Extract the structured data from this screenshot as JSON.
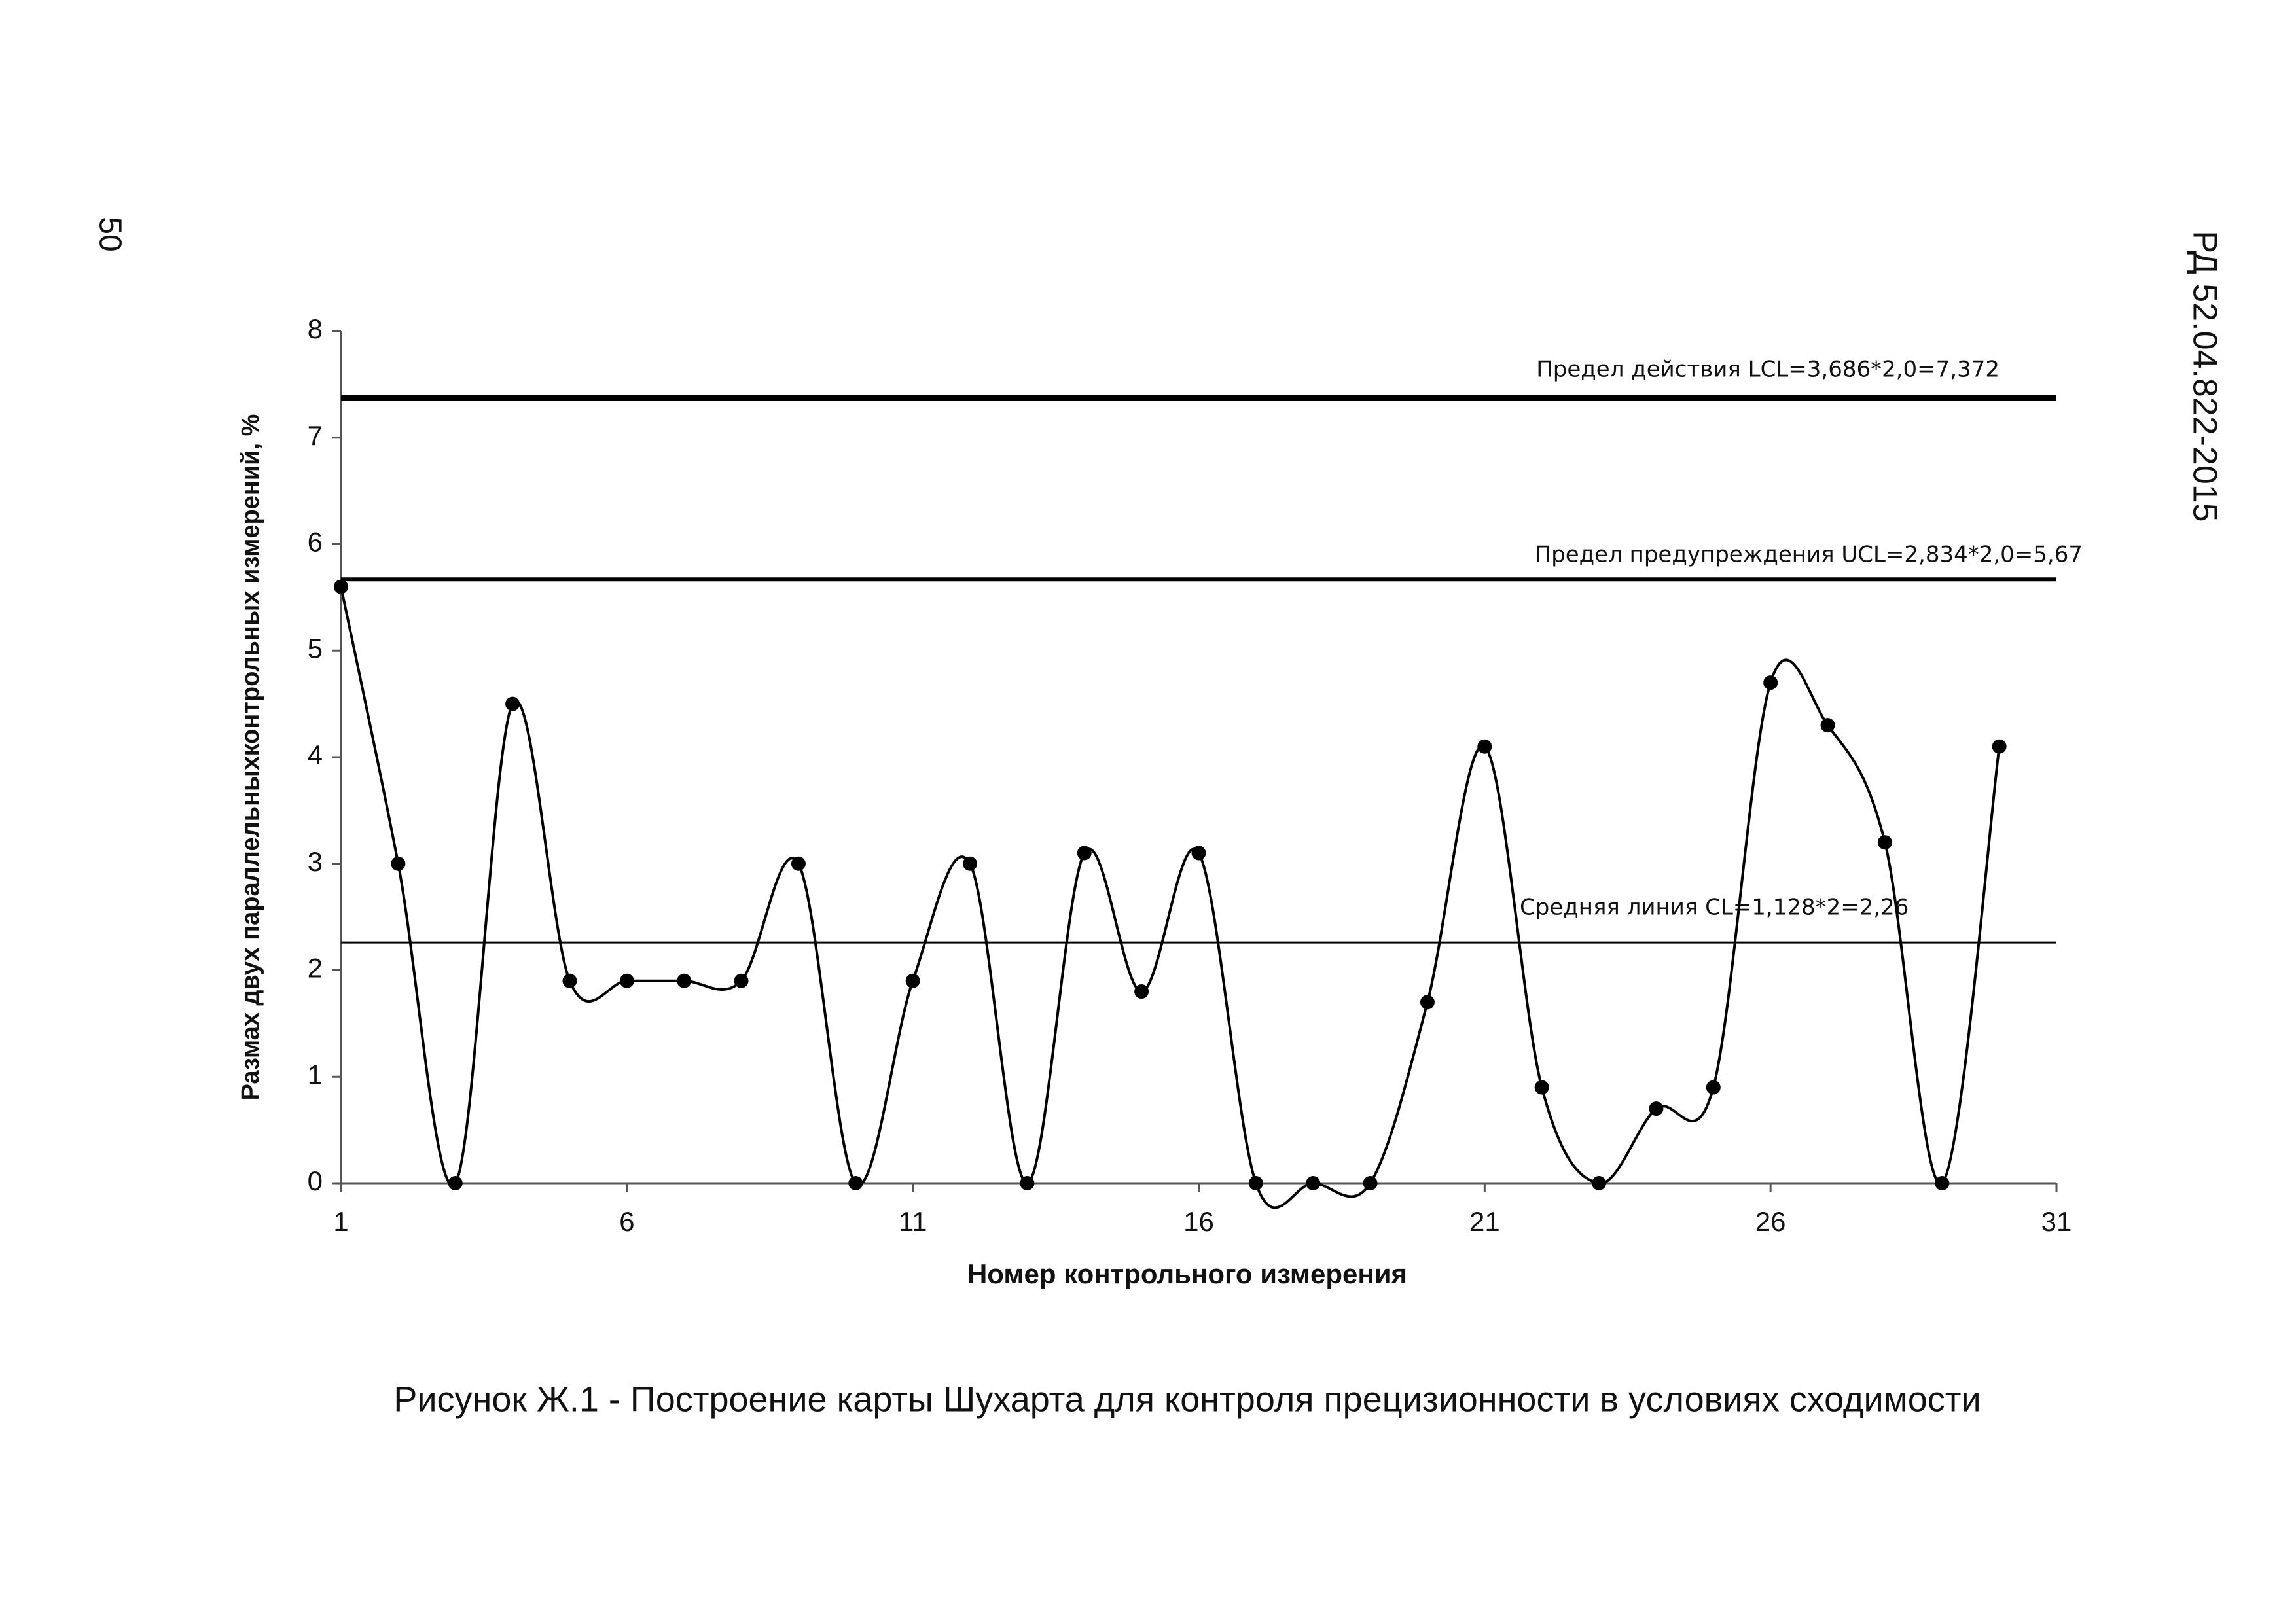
{
  "page": {
    "number": "50",
    "code": "РД 52.04.822-2015",
    "caption": "Рисунок Ж.1 - Построение карты Шухарта для контроля прецизионности в условиях сходимости"
  },
  "chart_data": {
    "type": "line",
    "x_label": "Номер контрольного измерения",
    "y_label": "Размах двух параллельныхконтрольных измерений, %",
    "x": [
      1,
      2,
      3,
      4,
      5,
      6,
      7,
      8,
      9,
      10,
      11,
      12,
      13,
      14,
      15,
      16,
      17,
      18,
      19,
      20,
      21,
      22,
      23,
      24,
      25,
      26,
      27,
      28,
      29,
      30
    ],
    "values": [
      5.6,
      3.0,
      0,
      4.5,
      1.9,
      1.9,
      1.9,
      1.9,
      3.0,
      0,
      1.9,
      3.0,
      0,
      3.1,
      1.8,
      3.1,
      0,
      0,
      0,
      1.7,
      4.1,
      0.9,
      0,
      0.7,
      0.9,
      4.7,
      4.3,
      3.2,
      0,
      4.1
    ],
    "color": "#000000",
    "smooth": true,
    "xlim": [
      1,
      31
    ],
    "xticks": [
      1,
      6,
      11,
      16,
      21,
      26,
      31
    ],
    "ylim": [
      0,
      8
    ],
    "yticks": [
      0,
      1,
      2,
      3,
      4,
      5,
      6,
      7,
      8
    ],
    "grid": false,
    "reference_lines": [
      {
        "value": 7.372,
        "label": "Предел действия LCL=3,686*2,0=7,372",
        "width": 9
      },
      {
        "value": 5.67,
        "label": "Предел предупреждения UCL=2,834*2,0=5,67",
        "width": 6
      },
      {
        "value": 2.26,
        "label": "Средняя линия CL=1,128*2=2,26",
        "width": 3
      }
    ]
  }
}
